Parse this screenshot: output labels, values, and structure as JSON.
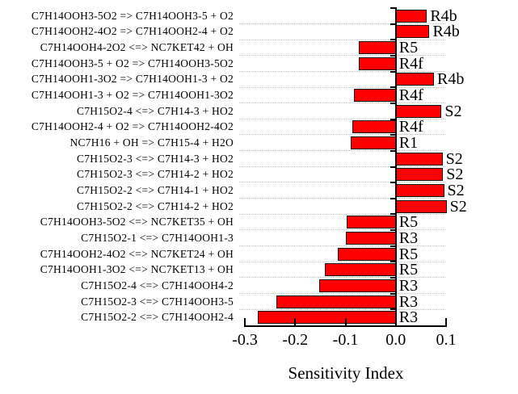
{
  "figure": {
    "background": "#ffffff",
    "text_color": "#000000"
  },
  "chart_data": {
    "type": "bar",
    "orientation": "horizontal",
    "title": "",
    "xlabel": "Sensitivity Index",
    "ylabel": "",
    "xlim": [
      -0.3,
      0.1
    ],
    "xticks": [
      -0.3,
      -0.2,
      -0.1,
      0.0,
      0.1
    ],
    "xtick_labels": [
      "-0.3",
      "-0.2",
      "-0.1",
      "0.0",
      "0.1"
    ],
    "grid": "horizontal-dotted",
    "legend": "none",
    "bar_color": "#ff0000",
    "bar_border_color": "#141414",
    "rows": [
      {
        "reaction": "C7H14OOH3-5O2 => C7H14OOH3-5 + O2",
        "code": "R4b",
        "value": 0.062
      },
      {
        "reaction": "C7H14OOH2-4O2 => C7H14OOH2-4 + O2",
        "code": "R4b",
        "value": 0.067
      },
      {
        "reaction": "C7H14OOH4-2O2 <=> NC7KET42 + OH",
        "code": "R5",
        "value": -0.074
      },
      {
        "reaction": "C7H14OOH3-5 + O2 => C7H14OOH3-5O2",
        "code": "R4f",
        "value": -0.074
      },
      {
        "reaction": "C7H14OOH1-3O2 => C7H14OOH1-3 + O2",
        "code": "R4b",
        "value": 0.076
      },
      {
        "reaction": "C7H14OOH1-3 + O2 => C7H14OOH1-3O2",
        "code": "R4f",
        "value": -0.083
      },
      {
        "reaction": "C7H15O2-4 <=> C7H14-3 + HO2",
        "code": "S2",
        "value": 0.091
      },
      {
        "reaction": "C7H14OOH2-4 + O2 => C7H14OOH2-4O2",
        "code": "R4f",
        "value": -0.087
      },
      {
        "reaction": "NC7H16 + OH => C7H15-4 + H2O",
        "code": "R1",
        "value": -0.09
      },
      {
        "reaction": "C7H15O2-3 <=> C7H14-3 + HO2",
        "code": "S2",
        "value": 0.093
      },
      {
        "reaction": "C7H15O2-3 <=> C7H14-2 + HO2",
        "code": "S2",
        "value": 0.094
      },
      {
        "reaction": "C7H15O2-2 <=> C7H14-1 + HO2",
        "code": "S2",
        "value": 0.096
      },
      {
        "reaction": "C7H15O2-2 <=> C7H14-2 + HO2",
        "code": "S2",
        "value": 0.101
      },
      {
        "reaction": "C7H14OOH3-5O2 <=> NC7KET35 + OH",
        "code": "R5",
        "value": -0.097
      },
      {
        "reaction": "C7H15O2-1 <=> C7H14OOH1-3",
        "code": "R3",
        "value": -0.099
      },
      {
        "reaction": "C7H14OOH2-4O2 <=> NC7KET24 + OH",
        "code": "R5",
        "value": -0.116
      },
      {
        "reaction": "C7H14OOH1-3O2 <=> NC7KET13 + OH",
        "code": "R5",
        "value": -0.141
      },
      {
        "reaction": "C7H15O2-4 <=> C7H14OOH4-2",
        "code": "R3",
        "value": -0.152
      },
      {
        "reaction": "C7H15O2-3 <=> C7H14OOH3-5",
        "code": "R3",
        "value": -0.237
      },
      {
        "reaction": "C7H15O2-2 <=> C7H14OOH2-4",
        "code": "R3",
        "value": -0.274
      }
    ]
  }
}
